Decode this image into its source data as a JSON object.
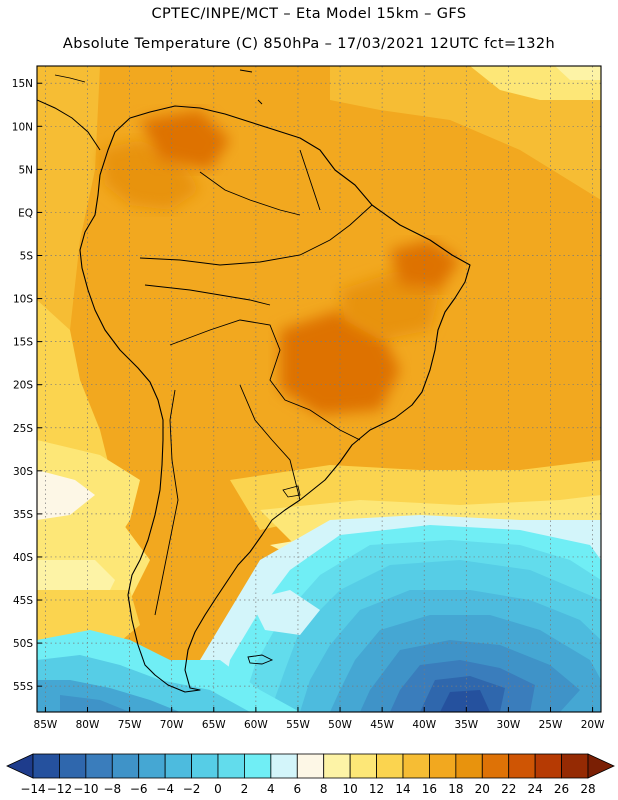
{
  "header": {
    "line1": "CPTEC/INPE/MCT –  Eta Model 15km – GFS",
    "line2": "Absolute Temperature (C) 850hPa – 17/03/2021 12UTC fct=132h"
  },
  "map": {
    "lon_range": [
      -86,
      -19
    ],
    "lat_range": [
      -58,
      17
    ],
    "x_ticks": [
      -85,
      -80,
      -75,
      -70,
      -65,
      -60,
      -55,
      -50,
      -45,
      -40,
      -35,
      -30,
      -25,
      -20
    ],
    "y_ticks": [
      15,
      10,
      5,
      0,
      -5,
      -10,
      -15,
      -20,
      -25,
      -30,
      -35,
      -40,
      -45,
      -50,
      -55
    ],
    "x_tick_labels": [
      "85W",
      "80W",
      "75W",
      "70W",
      "65W",
      "60W",
      "55W",
      "50W",
      "45W",
      "40W",
      "35W",
      "30W",
      "25W",
      "20W"
    ],
    "y_tick_labels": [
      "15N",
      "10N",
      "5N",
      "EQ",
      "5S",
      "10S",
      "15S",
      "20S",
      "25S",
      "30S",
      "35S",
      "40S",
      "45S",
      "50S",
      "55S"
    ]
  },
  "colorbar": {
    "labels": [
      "-14",
      "-12",
      "-10",
      "-8",
      "-6",
      "-4",
      "-2",
      "0",
      "2",
      "4",
      "6",
      "8",
      "10",
      "12",
      "14",
      "16",
      "18",
      "20",
      "22",
      "24",
      "26",
      "28"
    ],
    "colors": [
      "#1e3c8c",
      "#25519e",
      "#2f67ad",
      "#3a7dbc",
      "#3f93c8",
      "#45a7d3",
      "#4dbbde",
      "#56cde6",
      "#62dcec",
      "#70eef5",
      "#d3f5fa",
      "#fdf7e6",
      "#fdf3a6",
      "#fde777",
      "#fbd44f",
      "#f6bd34",
      "#f2a81f",
      "#e8930d",
      "#de7206",
      "#cf5504",
      "#b63a03",
      "#952a03",
      "#7a1f04"
    ]
  }
}
